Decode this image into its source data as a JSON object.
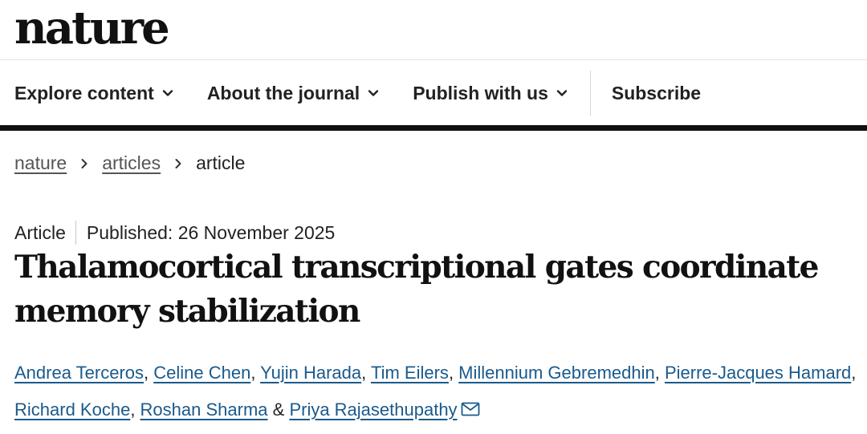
{
  "brand": {
    "logo": "nature"
  },
  "nav": {
    "items": [
      {
        "label": "Explore content",
        "icon": "chevron-down-icon"
      },
      {
        "label": "About the journal",
        "icon": "chevron-down-icon"
      },
      {
        "label": "Publish with us",
        "icon": "chevron-down-icon"
      }
    ],
    "subscribe_label": "Subscribe"
  },
  "breadcrumb": {
    "items": [
      "nature",
      "articles"
    ],
    "current": "article"
  },
  "article": {
    "type": "Article",
    "published": "Published: 26 November 2025",
    "title": "Thalamocortical transcriptional gates coordinate memory stabilization",
    "authors": [
      "Andrea Terceros",
      "Celine Chen",
      "Yujin Harada",
      "Tim Eilers",
      "Millennium Gebremedhin",
      "Pierre-Jacques Hamard",
      "Richard Koche",
      "Roshan Sharma",
      "Priya Rajasethupathy"
    ],
    "separator": ", ",
    "final_separator": " & ",
    "corresponding_icon": "mail-icon"
  },
  "colors": {
    "link": "#1a5a8c",
    "rule": "#111111"
  }
}
